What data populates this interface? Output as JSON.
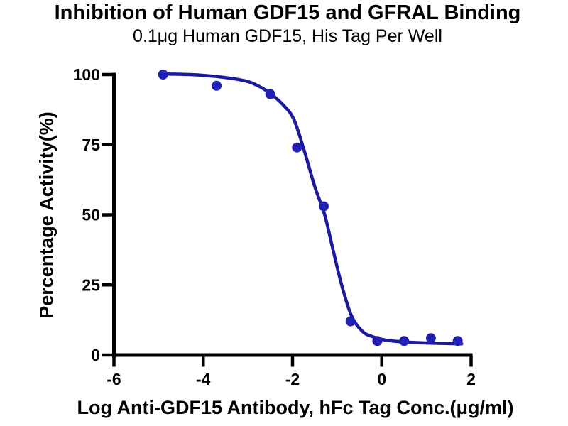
{
  "chart_data": {
    "type": "scatter",
    "title": "Inhibition of Human GDF15 and GFRAL Binding",
    "subtitle": "0.1μg Human GDF15, His Tag Per Well",
    "xlabel": "Log Anti-GDF15 Antibody, hFc Tag Conc.(μg/ml)",
    "ylabel": "Percentage Activity(%)",
    "x_ticks": [
      -6,
      -4,
      -2,
      0,
      2
    ],
    "y_ticks": [
      0,
      25,
      50,
      75,
      100
    ],
    "xlim": [
      -6,
      2
    ],
    "ylim": [
      0,
      100
    ],
    "grid": false,
    "legend": false,
    "series": [
      {
        "name": "Anti-GDF15 Antibody, hFc Tag",
        "points": [
          {
            "x": -4.9,
            "y": 100
          },
          {
            "x": -3.7,
            "y": 96
          },
          {
            "x": -2.5,
            "y": 93
          },
          {
            "x": -1.9,
            "y": 74
          },
          {
            "x": -1.3,
            "y": 53
          },
          {
            "x": -0.7,
            "y": 12
          },
          {
            "x": -0.1,
            "y": 5
          },
          {
            "x": 0.5,
            "y": 5
          },
          {
            "x": 1.1,
            "y": 6
          },
          {
            "x": 1.7,
            "y": 5
          }
        ]
      }
    ],
    "fit_curve": [
      [
        -4.93,
        100.2
      ],
      [
        -4.3,
        100.0
      ],
      [
        -3.7,
        99.3
      ],
      [
        -3.1,
        97.9
      ],
      [
        -2.8,
        96.2
      ],
      [
        -2.5,
        93.3
      ],
      [
        -2.2,
        89.0
      ],
      [
        -1.97,
        84.0
      ],
      [
        -1.74,
        73.0
      ],
      [
        -1.5,
        60.0
      ],
      [
        -1.28,
        50.0
      ],
      [
        -1.1,
        38.0
      ],
      [
        -0.9,
        25.0
      ],
      [
        -0.68,
        14.0
      ],
      [
        -0.44,
        8.5
      ],
      [
        -0.2,
        6.5
      ],
      [
        0.1,
        5.3
      ],
      [
        0.55,
        4.6
      ],
      [
        1.16,
        4.2
      ],
      [
        1.79,
        4.0
      ]
    ],
    "colors": {
      "points": "#2020b2",
      "curve": "#1a1aa0",
      "axis": "#000000",
      "background": "#ffffff"
    }
  }
}
